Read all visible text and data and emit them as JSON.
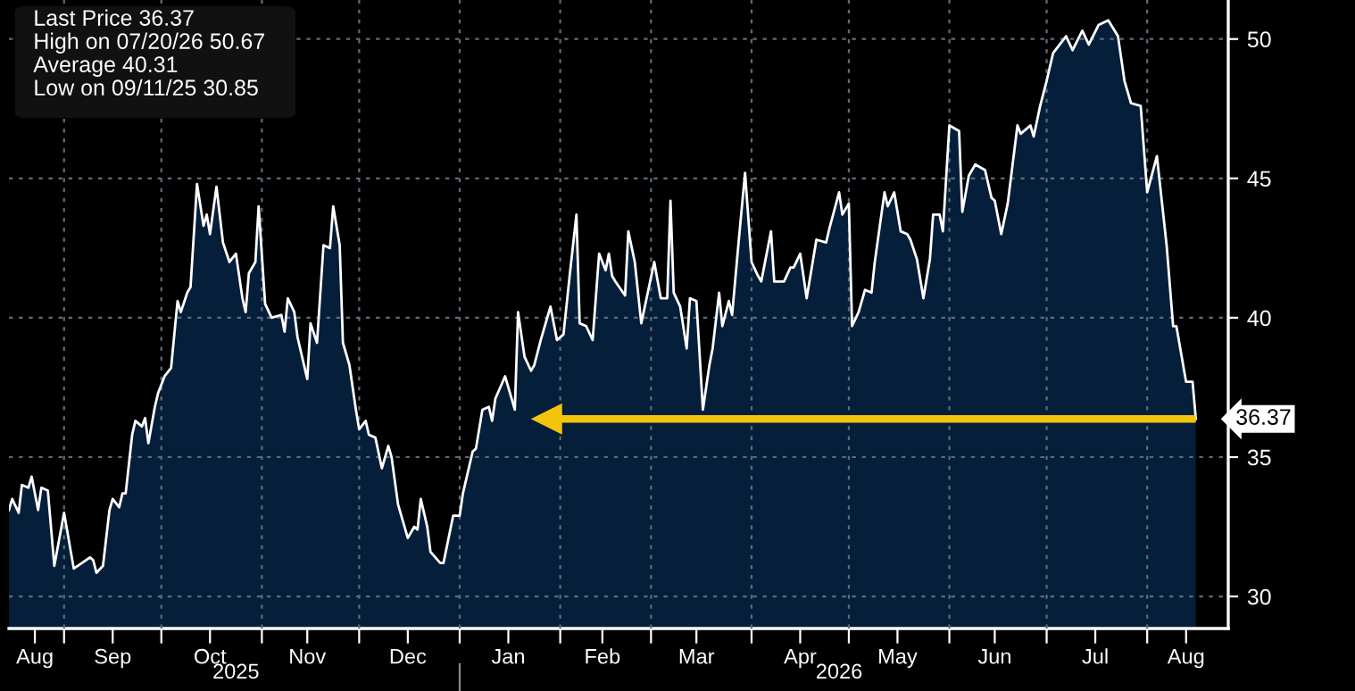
{
  "chart_data": {
    "type": "area",
    "x": [
      "2025-08-15",
      "2025-08-16",
      "2025-08-18",
      "2025-08-19",
      "2025-08-21",
      "2025-08-22",
      "2025-08-24",
      "2025-08-25",
      "2025-08-27",
      "2025-08-29",
      "2025-09-01",
      "2025-09-04",
      "2025-09-09",
      "2025-09-10",
      "2025-09-11",
      "2025-09-13",
      "2025-09-15",
      "2025-09-16",
      "2025-09-18",
      "2025-09-19",
      "2025-09-20",
      "2025-09-22",
      "2025-09-23",
      "2025-09-25",
      "2025-09-26",
      "2025-09-27",
      "2025-09-29",
      "2025-09-30",
      "2025-10-02",
      "2025-10-04",
      "2025-10-06",
      "2025-10-07",
      "2025-10-09",
      "2025-10-10",
      "2025-10-12",
      "2025-10-14",
      "2025-10-15",
      "2025-10-16",
      "2025-10-18",
      "2025-10-20",
      "2025-10-22",
      "2025-10-24",
      "2025-10-26",
      "2025-10-27",
      "2025-10-28",
      "2025-10-30",
      "2025-10-31",
      "2025-11-02",
      "2025-11-04",
      "2025-11-07",
      "2025-11-08",
      "2025-11-09",
      "2025-11-11",
      "2025-11-12",
      "2025-11-15",
      "2025-11-16",
      "2025-11-18",
      "2025-11-20",
      "2025-11-22",
      "2025-11-23",
      "2025-11-25",
      "2025-11-26",
      "2025-11-28",
      "2025-11-30",
      "2025-12-01",
      "2025-12-03",
      "2025-12-04",
      "2025-12-06",
      "2025-12-08",
      "2025-12-10",
      "2025-12-11",
      "2025-12-13",
      "2025-12-16",
      "2025-12-18",
      "2025-12-19",
      "2025-12-20",
      "2025-12-22",
      "2025-12-23",
      "2025-12-26",
      "2025-12-27",
      "2025-12-30",
      "2026-01-01",
      "2026-01-02",
      "2026-01-05",
      "2026-01-06",
      "2026-01-08",
      "2026-01-10",
      "2026-01-11",
      "2026-01-12",
      "2026-01-15",
      "2026-01-18",
      "2026-01-19",
      "2026-01-21",
      "2026-01-23",
      "2026-01-24",
      "2026-01-26",
      "2026-01-29",
      "2026-01-31",
      "2026-02-02",
      "2026-02-04",
      "2026-02-06",
      "2026-02-07",
      "2026-02-09",
      "2026-02-11",
      "2026-02-13",
      "2026-02-15",
      "2026-02-16",
      "2026-02-17",
      "2026-02-18",
      "2026-02-21",
      "2026-02-22",
      "2026-02-24",
      "2026-02-26",
      "2026-02-28",
      "2026-03-02",
      "2026-03-04",
      "2026-03-06",
      "2026-03-07",
      "2026-03-08",
      "2026-03-10",
      "2026-03-12",
      "2026-03-13",
      "2026-03-15",
      "2026-03-17",
      "2026-03-19",
      "2026-03-20",
      "2026-03-22",
      "2026-03-23",
      "2026-03-25",
      "2026-03-26",
      "2026-03-28",
      "2026-03-30",
      "2026-04-01",
      "2026-04-03",
      "2026-04-04",
      "2026-04-07",
      "2026-04-08",
      "2026-04-11",
      "2026-04-13",
      "2026-04-14",
      "2026-04-16",
      "2026-04-18",
      "2026-04-21",
      "2026-04-24",
      "2026-04-25",
      "2026-04-28",
      "2026-04-29",
      "2026-05-01",
      "2026-05-02",
      "2026-05-04",
      "2026-05-06",
      "2026-05-08",
      "2026-05-09",
      "2026-05-12",
      "2026-05-13",
      "2026-05-15",
      "2026-05-17",
      "2026-05-19",
      "2026-05-20",
      "2026-05-22",
      "2026-05-24",
      "2026-05-26",
      "2026-05-27",
      "2026-05-29",
      "2026-05-30",
      "2026-06-01",
      "2026-06-04",
      "2026-06-05",
      "2026-06-07",
      "2026-06-09",
      "2026-06-12",
      "2026-06-14",
      "2026-06-15",
      "2026-06-17",
      "2026-06-19",
      "2026-06-22",
      "2026-06-23",
      "2026-06-26",
      "2026-06-27",
      "2026-06-29",
      "2026-07-01",
      "2026-07-03",
      "2026-07-07",
      "2026-07-09",
      "2026-07-12",
      "2026-07-14",
      "2026-07-17",
      "2026-07-20",
      "2026-07-23",
      "2026-07-25",
      "2026-07-27",
      "2026-07-30",
      "2026-08-01",
      "2026-08-04",
      "2026-08-07",
      "2026-08-09",
      "2026-08-10",
      "2026-08-13",
      "2026-08-15",
      "2026-08-16"
    ],
    "series": [
      {
        "color": "#051e3a",
        "values": [
          33.1,
          33.5,
          33.0,
          34.0,
          33.9,
          34.3,
          33.1,
          33.9,
          33.8,
          31.1,
          33.0,
          31.0,
          31.4,
          31.3,
          30.85,
          31.1,
          33.1,
          33.5,
          33.2,
          33.7,
          33.7,
          35.8,
          36.3,
          36.1,
          36.4,
          35.5,
          36.8,
          37.3,
          37.9,
          38.2,
          40.6,
          40.2,
          40.9,
          41.1,
          44.8,
          43.3,
          43.7,
          43.0,
          44.7,
          42.7,
          42.0,
          42.3,
          40.7,
          40.2,
          41.6,
          42.0,
          44.0,
          40.5,
          40.0,
          40.1,
          39.5,
          40.7,
          40.2,
          39.3,
          37.8,
          39.8,
          39.1,
          42.6,
          42.5,
          44.0,
          42.6,
          39.1,
          38.3,
          36.7,
          36.0,
          36.3,
          35.8,
          35.7,
          34.6,
          35.4,
          35.0,
          33.3,
          32.1,
          32.5,
          32.4,
          33.5,
          32.5,
          31.6,
          31.2,
          31.2,
          32.9,
          32.9,
          33.7,
          35.2,
          35.3,
          36.7,
          36.8,
          36.3,
          37.1,
          37.9,
          36.7,
          40.2,
          38.6,
          38.1,
          38.3,
          39.2,
          40.4,
          39.2,
          39.4,
          41.6,
          43.7,
          39.8,
          39.7,
          39.2,
          42.3,
          41.7,
          42.3,
          41.5,
          41.3,
          40.8,
          43.1,
          42.0,
          39.8,
          40.9,
          42.0,
          40.7,
          40.7,
          44.2,
          40.9,
          40.4,
          38.9,
          40.7,
          40.6,
          36.7,
          38.3,
          38.9,
          40.9,
          39.7,
          40.6,
          40.1,
          42.7,
          45.2,
          42.0,
          41.5,
          41.3,
          43.1,
          41.3,
          41.3,
          41.8,
          41.8,
          42.3,
          40.7,
          42.8,
          42.7,
          43.2,
          44.5,
          43.7,
          44.1,
          39.7,
          40.2,
          41.0,
          40.9,
          42.0,
          44.5,
          44.0,
          44.5,
          43.1,
          43.0,
          42.8,
          42.1,
          40.7,
          42.1,
          43.7,
          43.7,
          43.1,
          46.9,
          46.7,
          43.8,
          45.1,
          45.5,
          45.3,
          44.3,
          44.2,
          43.0,
          44.1,
          46.9,
          46.6,
          46.9,
          46.5,
          47.6,
          48.5,
          49.5,
          50.1,
          49.6,
          50.3,
          49.8,
          50.5,
          50.67,
          50.1,
          48.5,
          47.7,
          47.6,
          44.5,
          45.8,
          42.6,
          39.7,
          39.7,
          37.7,
          37.7,
          36.37
        ]
      },
      {
        "type": "line",
        "color": "#f2c40c",
        "x": [
          "2026-08-16",
          "2026-01-28"
        ],
        "values": [
          36.37,
          36.37
        ]
      }
    ],
    "xlim": [
      "2025-08-15",
      "2026-08-26"
    ],
    "xticks": [
      {
        "value": "2025-08-23",
        "label": "Aug"
      },
      {
        "value": "2025-09-01",
        "label": null
      },
      {
        "value": "2025-09-16",
        "label": "Sep"
      },
      {
        "value": "2025-10-01",
        "label": null
      },
      {
        "value": "2025-10-16",
        "label": "Oct"
      },
      {
        "value": "2025-11-01",
        "label": null
      },
      {
        "value": "2025-11-15",
        "label": "Nov"
      },
      {
        "value": "2025-12-01",
        "label": null
      },
      {
        "value": "2025-12-16",
        "label": "Dec"
      },
      {
        "value": "2026-01-01",
        "label": null
      },
      {
        "value": "2026-01-16",
        "label": "Jan"
      },
      {
        "value": "2026-02-01",
        "label": null
      },
      {
        "value": "2026-02-14",
        "label": "Feb"
      },
      {
        "value": "2026-03-01",
        "label": null
      },
      {
        "value": "2026-03-15",
        "label": "Mar"
      },
      {
        "value": "2026-04-01",
        "label": null
      },
      {
        "value": "2026-04-16",
        "label": "Apr"
      },
      {
        "value": "2026-05-01",
        "label": null
      },
      {
        "value": "2026-05-16",
        "label": "May"
      },
      {
        "value": "2026-06-01",
        "label": null
      },
      {
        "value": "2026-06-15",
        "label": "Jun"
      },
      {
        "value": "2026-07-01",
        "label": null
      },
      {
        "value": "2026-07-16",
        "label": "Jul"
      },
      {
        "value": "2026-08-01",
        "label": null
      },
      {
        "value": "2026-08-13",
        "label": "Aug"
      }
    ],
    "x2lim": [
      "2025-08-15",
      "2026-08-26"
    ],
    "x2ticks": [
      {
        "value": "2025-10-24",
        "label": "2025"
      },
      {
        "value": "2026-01-01",
        "label": null
      },
      {
        "value": "2026-04-28",
        "label": "2026"
      }
    ],
    "ylim": [
      28.85,
      51.4
    ],
    "yticks": [
      30,
      35,
      40,
      45,
      50
    ],
    "grid": true,
    "annotations": [
      "Last Price 36.37",
      "High on 07/20/26 50.67",
      "Average 40.31",
      "Low on 09/11/25 30.85",
      {
        "text": "36.37",
        "x": "2026-08-16",
        "y": 36.37
      }
    ]
  }
}
